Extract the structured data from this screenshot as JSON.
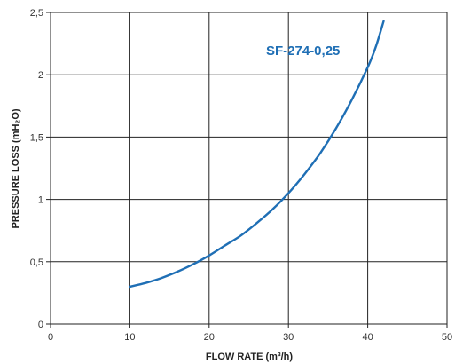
{
  "chart_data": {
    "type": "line",
    "title": "",
    "xlabel": "FLOW RATE (m³/h)",
    "ylabel": "PRESSURE LOSS (mH₂O)",
    "xlim": [
      0,
      50
    ],
    "ylim": [
      0,
      2.5
    ],
    "x_ticks": [
      "0",
      "10",
      "20",
      "30",
      "40",
      "50"
    ],
    "y_ticks": [
      "0",
      "0,5",
      "1",
      "1,5",
      "2",
      "2,5"
    ],
    "grid": true,
    "annotation": "SF-274-0,25",
    "line_color": "#1f6fb5",
    "series": [
      {
        "x": [
          10,
          12,
          14,
          16,
          18,
          20,
          22,
          24,
          26,
          28,
          30,
          32,
          34,
          36,
          38,
          40,
          41,
          42
        ],
        "y": [
          0.3,
          0.33,
          0.37,
          0.42,
          0.48,
          0.55,
          0.63,
          0.71,
          0.81,
          0.92,
          1.05,
          1.2,
          1.37,
          1.57,
          1.8,
          2.06,
          2.22,
          2.43
        ]
      }
    ]
  }
}
